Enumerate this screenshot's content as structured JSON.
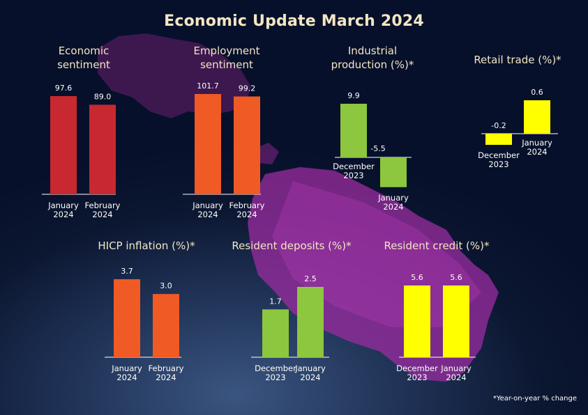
{
  "title": "Economic Update March 2024",
  "footnote": "*Year-on-year % change",
  "colors": {
    "title": "#f2e6c4",
    "panel_title": "#f2e6c4",
    "red": "#c8282f",
    "orange": "#f05a24",
    "green": "#8dc63f",
    "yellow": "#ffff00",
    "background": "#0b1630",
    "map": "#9b2ca0"
  },
  "chart_data": [
    {
      "type": "bar",
      "title_lines": [
        "Economic",
        "sentiment"
      ],
      "color": "#c8282f",
      "categories": [
        [
          "January",
          "2024"
        ],
        [
          "February",
          "2024"
        ]
      ],
      "values": [
        97.6,
        89.0
      ],
      "labels": [
        "97.6",
        "89.0"
      ]
    },
    {
      "type": "bar",
      "title_lines": [
        "Employment",
        "sentiment"
      ],
      "color": "#f05a24",
      "categories": [
        [
          "January",
          "2024"
        ],
        [
          "February",
          "2024"
        ]
      ],
      "values": [
        101.7,
        99.2
      ],
      "labels": [
        "101.7",
        "99.2"
      ]
    },
    {
      "type": "bar",
      "title_lines": [
        "Industrial",
        "production (%)*"
      ],
      "color": "#8dc63f",
      "categories": [
        [
          "December",
          "2023"
        ],
        [
          "January",
          "2024"
        ]
      ],
      "values": [
        9.9,
        -5.5
      ],
      "labels": [
        "9.9",
        "-5.5"
      ]
    },
    {
      "type": "bar",
      "title_lines": [
        "Retail trade (%)*"
      ],
      "color": "#ffff00",
      "categories": [
        [
          "December",
          "2023"
        ],
        [
          "January",
          "2024"
        ]
      ],
      "values": [
        -0.2,
        0.6
      ],
      "labels": [
        "-0.2",
        "0.6"
      ]
    },
    {
      "type": "bar",
      "title_lines": [
        "HICP inflation (%)*"
      ],
      "color": "#f05a24",
      "categories": [
        [
          "January",
          "2024"
        ],
        [
          "February",
          "2024"
        ]
      ],
      "values": [
        3.7,
        3.0
      ],
      "labels": [
        "3.7",
        "3.0"
      ]
    },
    {
      "type": "bar",
      "title_lines": [
        "Resident deposits (%)*"
      ],
      "color": "#8dc63f",
      "categories": [
        [
          "December",
          "2023"
        ],
        [
          "January",
          "2024"
        ]
      ],
      "values": [
        1.7,
        2.5
      ],
      "labels": [
        "1.7",
        "2.5"
      ]
    },
    {
      "type": "bar",
      "title_lines": [
        "Resident credit (%)*"
      ],
      "color": "#ffff00",
      "categories": [
        [
          "December",
          "2023"
        ],
        [
          "January",
          "2024"
        ]
      ],
      "values": [
        5.6,
        5.6
      ],
      "labels": [
        "5.6",
        "5.6"
      ]
    }
  ]
}
